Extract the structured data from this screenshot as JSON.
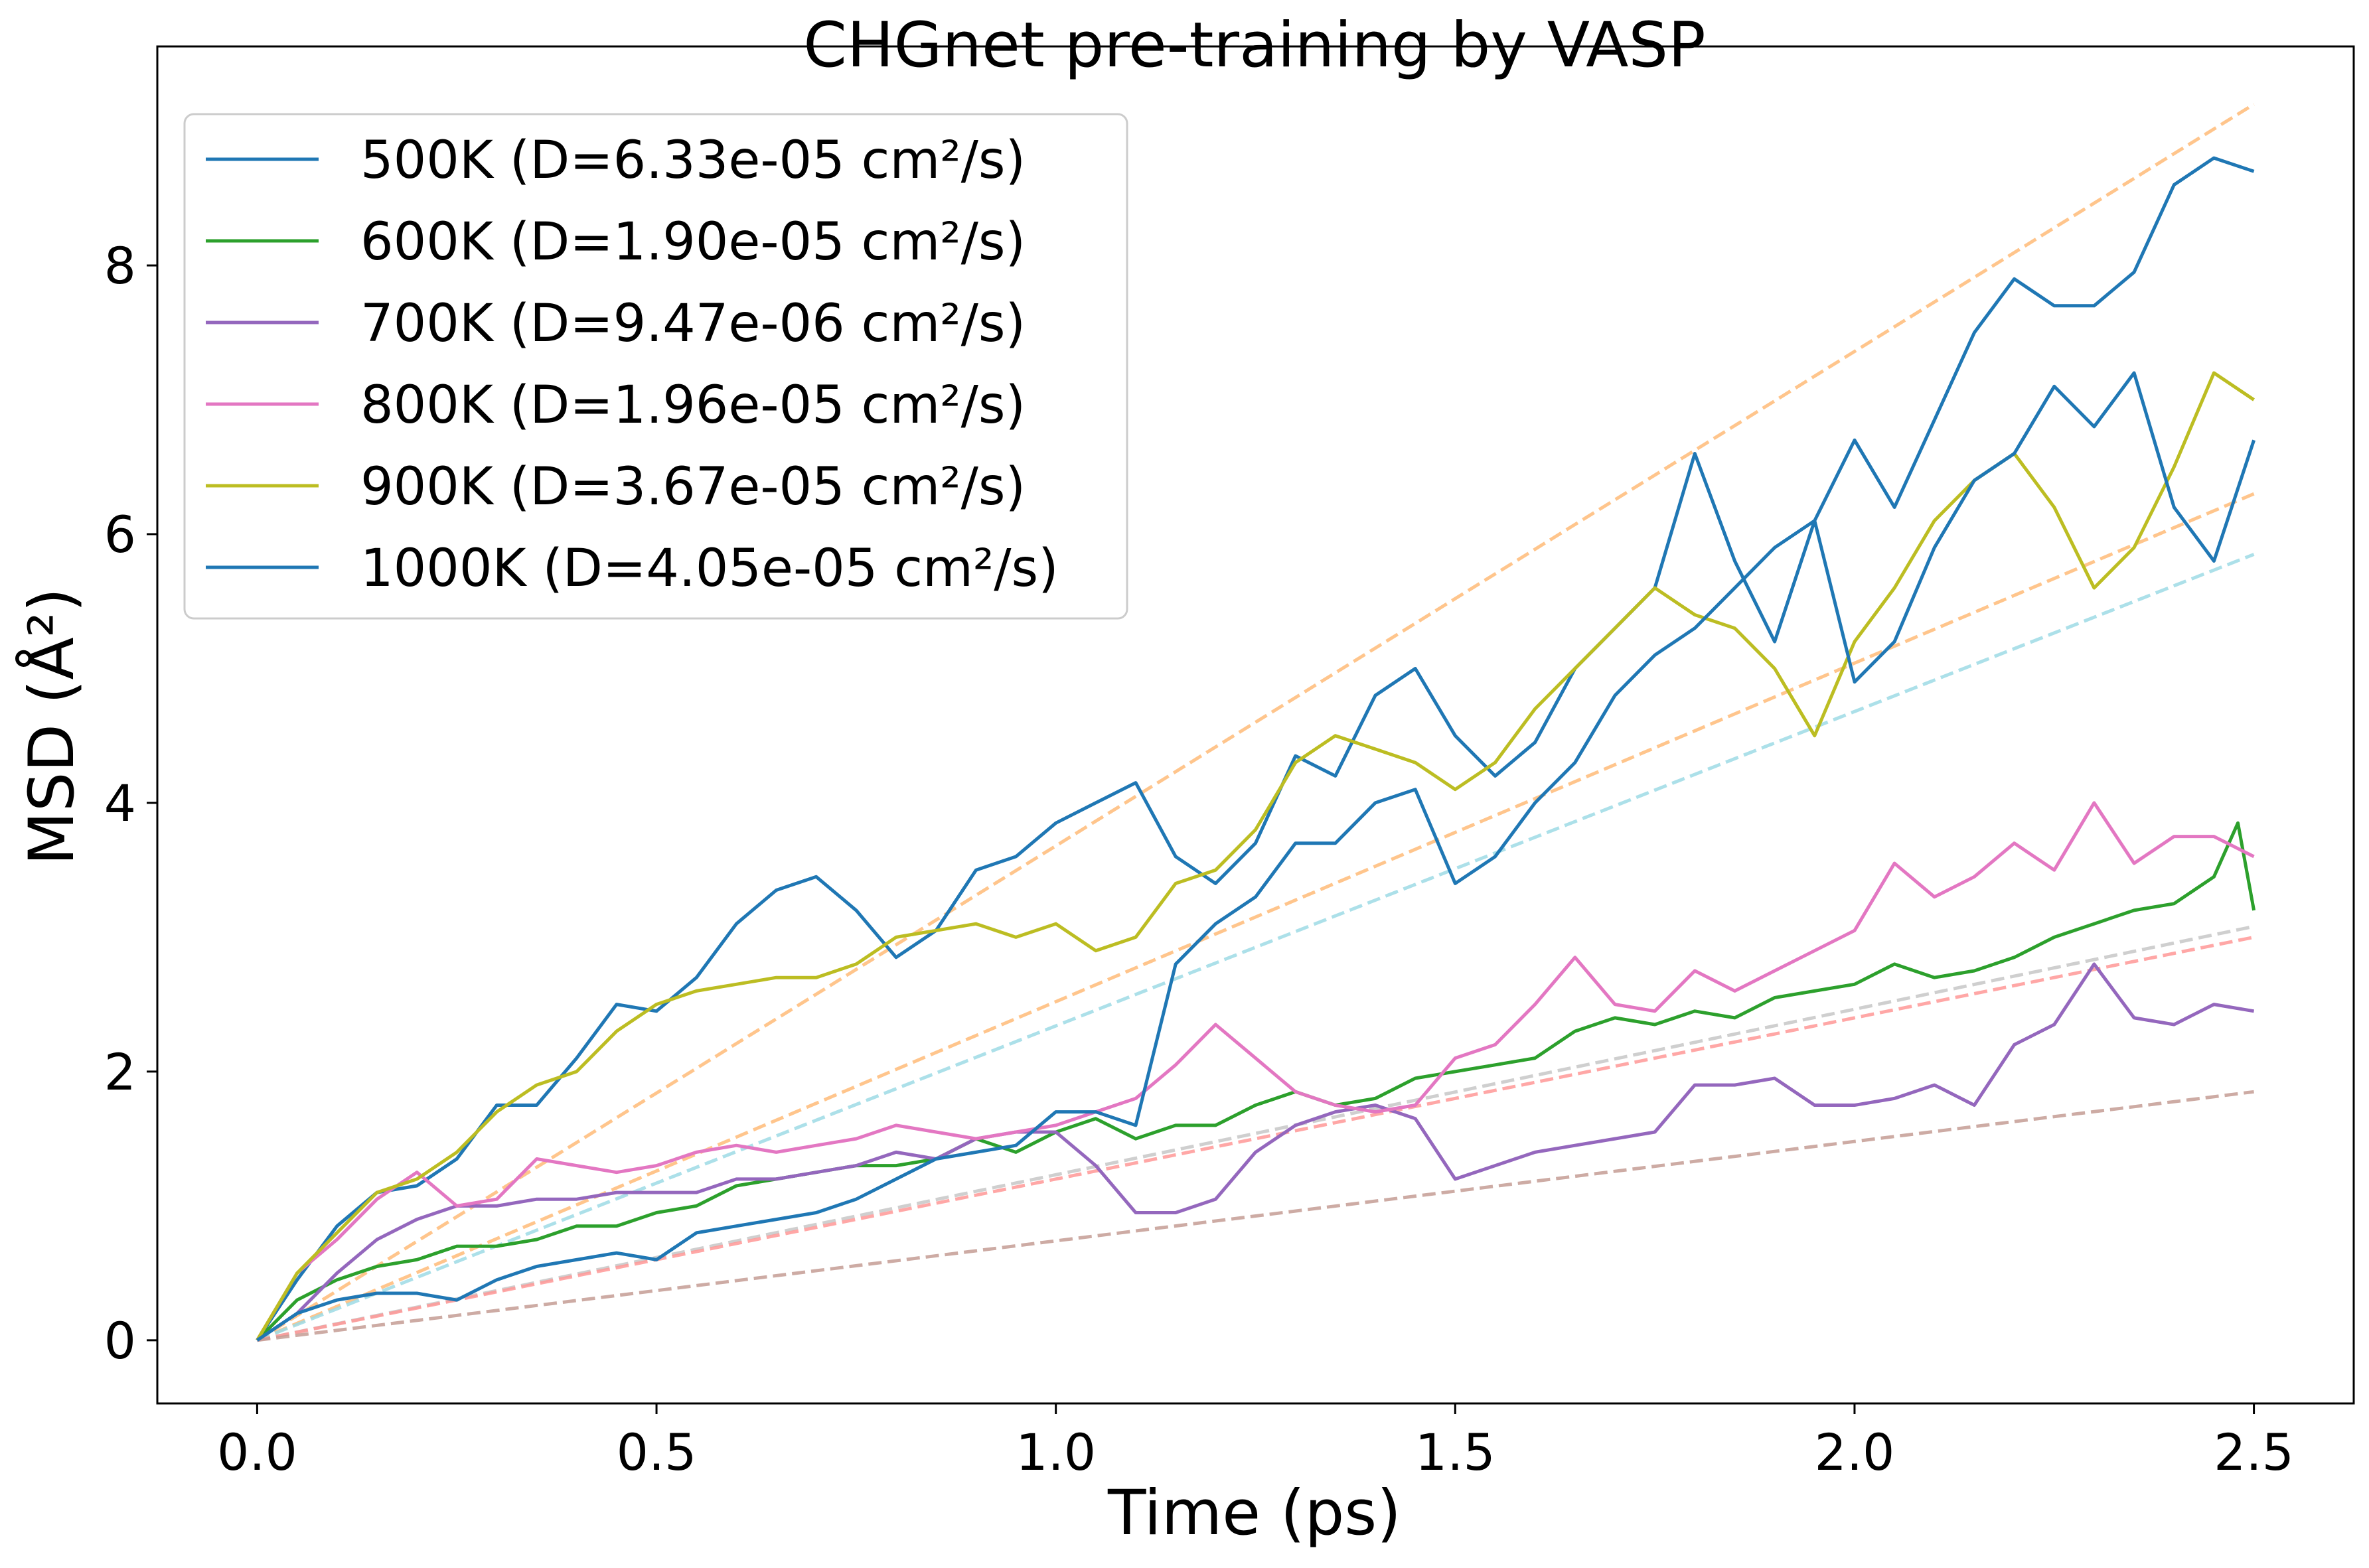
{
  "chart_data": {
    "type": "line",
    "title": "CHGnet pre-training by VASP",
    "xlabel": "Time (ps)",
    "ylabel": "MSD (Å²)",
    "xlim": [
      -0.125,
      2.625
    ],
    "ylim": [
      -0.47,
      9.63
    ],
    "xticks": [
      0.0,
      0.5,
      1.0,
      1.5,
      2.0,
      2.5
    ],
    "xtick_labels": [
      "0.0",
      "0.5",
      "1.0",
      "1.5",
      "2.0",
      "2.5"
    ],
    "yticks": [
      0,
      2,
      4,
      6,
      8
    ],
    "ytick_labels": [
      "0",
      "2",
      "4",
      "6",
      "8"
    ],
    "grid": false,
    "legend_position": "top-left",
    "series": [
      {
        "name": "500K (D=6.33e-05 cm²/s)",
        "color": "#1f77b4",
        "x": [
          0.0,
          0.05,
          0.1,
          0.15,
          0.2,
          0.25,
          0.3,
          0.35,
          0.4,
          0.45,
          0.5,
          0.55,
          0.6,
          0.65,
          0.7,
          0.75,
          0.8,
          0.85,
          0.9,
          0.95,
          1.0,
          1.05,
          1.1,
          1.15,
          1.2,
          1.25,
          1.3,
          1.35,
          1.4,
          1.45,
          1.5,
          1.55,
          1.6,
          1.65,
          1.7,
          1.75,
          1.8,
          1.85,
          1.9,
          1.95,
          2.0,
          2.05,
          2.1,
          2.15,
          2.2,
          2.25,
          2.3,
          2.35,
          2.4,
          2.45,
          2.5
        ],
        "y": [
          0.0,
          0.45,
          0.85,
          1.1,
          1.15,
          1.35,
          1.75,
          1.75,
          2.1,
          2.5,
          2.45,
          2.7,
          3.1,
          3.35,
          3.45,
          3.2,
          2.85,
          3.05,
          3.5,
          3.6,
          3.85,
          4.0,
          4.15,
          3.6,
          3.4,
          3.7,
          4.35,
          4.2,
          4.8,
          5.0,
          4.5,
          4.2,
          4.45,
          5.0,
          5.3,
          5.6,
          6.6,
          5.8,
          5.2,
          6.1,
          6.7,
          6.2,
          6.85,
          7.5,
          7.9,
          7.7,
          7.7,
          7.95,
          8.6,
          8.8,
          8.7
        ]
      },
      {
        "name": "600K (D=1.90e-05 cm²/s)",
        "color": "#2ca02c",
        "x": [
          0.0,
          0.05,
          0.1,
          0.15,
          0.2,
          0.25,
          0.3,
          0.35,
          0.4,
          0.45,
          0.5,
          0.55,
          0.6,
          0.65,
          0.7,
          0.75,
          0.8,
          0.85,
          0.9,
          0.95,
          1.0,
          1.05,
          1.1,
          1.15,
          1.2,
          1.25,
          1.3,
          1.35,
          1.4,
          1.45,
          1.5,
          1.55,
          1.6,
          1.65,
          1.7,
          1.75,
          1.8,
          1.85,
          1.9,
          1.95,
          2.0,
          2.05,
          2.1,
          2.15,
          2.2,
          2.25,
          2.3,
          2.35,
          2.4,
          2.45,
          2.48,
          2.5
        ],
        "y": [
          0.0,
          0.3,
          0.45,
          0.55,
          0.6,
          0.7,
          0.7,
          0.75,
          0.85,
          0.85,
          0.95,
          1.0,
          1.15,
          1.2,
          1.25,
          1.3,
          1.3,
          1.35,
          1.5,
          1.4,
          1.55,
          1.65,
          1.5,
          1.6,
          1.6,
          1.75,
          1.85,
          1.75,
          1.8,
          1.95,
          2.0,
          2.05,
          2.1,
          2.3,
          2.4,
          2.35,
          2.45,
          2.4,
          2.55,
          2.6,
          2.65,
          2.8,
          2.7,
          2.75,
          2.85,
          3.0,
          3.1,
          3.2,
          3.25,
          3.45,
          3.85,
          3.2
        ]
      },
      {
        "name": "700K (D=9.47e-06 cm²/s)",
        "color": "#9467bd",
        "x": [
          0.0,
          0.05,
          0.1,
          0.15,
          0.2,
          0.25,
          0.3,
          0.35,
          0.4,
          0.45,
          0.5,
          0.55,
          0.6,
          0.65,
          0.7,
          0.75,
          0.8,
          0.85,
          0.9,
          0.95,
          1.0,
          1.05,
          1.1,
          1.15,
          1.2,
          1.25,
          1.3,
          1.35,
          1.4,
          1.45,
          1.5,
          1.55,
          1.6,
          1.65,
          1.7,
          1.75,
          1.8,
          1.85,
          1.9,
          1.95,
          2.0,
          2.05,
          2.1,
          2.15,
          2.2,
          2.25,
          2.3,
          2.35,
          2.4,
          2.45,
          2.5
        ],
        "y": [
          0.0,
          0.2,
          0.5,
          0.75,
          0.9,
          1.0,
          1.0,
          1.05,
          1.05,
          1.1,
          1.1,
          1.1,
          1.2,
          1.2,
          1.25,
          1.3,
          1.4,
          1.35,
          1.5,
          1.55,
          1.55,
          1.3,
          0.95,
          0.95,
          1.05,
          1.4,
          1.6,
          1.7,
          1.75,
          1.65,
          1.2,
          1.3,
          1.4,
          1.45,
          1.5,
          1.55,
          1.9,
          1.9,
          1.95,
          1.75,
          1.75,
          1.8,
          1.9,
          1.75,
          2.2,
          2.35,
          2.8,
          2.4,
          2.35,
          2.5,
          2.45
        ]
      },
      {
        "name": "800K (D=1.96e-05 cm²/s)",
        "color": "#e377c2",
        "x": [
          0.0,
          0.05,
          0.1,
          0.15,
          0.2,
          0.25,
          0.3,
          0.35,
          0.4,
          0.45,
          0.5,
          0.55,
          0.6,
          0.65,
          0.7,
          0.75,
          0.8,
          0.85,
          0.9,
          0.95,
          1.0,
          1.05,
          1.1,
          1.15,
          1.2,
          1.25,
          1.3,
          1.35,
          1.4,
          1.45,
          1.5,
          1.55,
          1.6,
          1.65,
          1.7,
          1.75,
          1.8,
          1.85,
          1.9,
          1.95,
          2.0,
          2.05,
          2.1,
          2.15,
          2.2,
          2.25,
          2.3,
          2.35,
          2.4,
          2.45,
          2.5
        ],
        "y": [
          0.0,
          0.5,
          0.75,
          1.05,
          1.25,
          1.0,
          1.05,
          1.35,
          1.3,
          1.25,
          1.3,
          1.4,
          1.45,
          1.4,
          1.45,
          1.5,
          1.6,
          1.55,
          1.5,
          1.55,
          1.6,
          1.7,
          1.8,
          2.05,
          2.35,
          2.1,
          1.85,
          1.75,
          1.7,
          1.75,
          2.1,
          2.2,
          2.5,
          2.85,
          2.5,
          2.45,
          2.75,
          2.6,
          2.75,
          2.9,
          3.05,
          3.55,
          3.3,
          3.45,
          3.7,
          3.5,
          4.0,
          3.55,
          3.75,
          3.75,
          3.6
        ]
      },
      {
        "name": "900K (D=3.67e-05 cm²/s)",
        "color": "#bcbd22",
        "x": [
          0.0,
          0.05,
          0.1,
          0.15,
          0.2,
          0.25,
          0.3,
          0.35,
          0.4,
          0.45,
          0.5,
          0.55,
          0.6,
          0.65,
          0.7,
          0.75,
          0.8,
          0.85,
          0.9,
          0.95,
          1.0,
          1.05,
          1.1,
          1.15,
          1.2,
          1.25,
          1.3,
          1.35,
          1.4,
          1.45,
          1.5,
          1.55,
          1.6,
          1.65,
          1.7,
          1.75,
          1.8,
          1.85,
          1.9,
          1.95,
          2.0,
          2.05,
          2.1,
          2.15,
          2.2,
          2.25,
          2.3,
          2.35,
          2.4,
          2.45,
          2.5
        ],
        "y": [
          0.0,
          0.5,
          0.8,
          1.1,
          1.2,
          1.4,
          1.7,
          1.9,
          2.0,
          2.3,
          2.5,
          2.6,
          2.65,
          2.7,
          2.7,
          2.8,
          3.0,
          3.05,
          3.1,
          3.0,
          3.1,
          2.9,
          3.0,
          3.4,
          3.5,
          3.8,
          4.3,
          4.5,
          4.4,
          4.3,
          4.1,
          4.3,
          4.7,
          5.0,
          5.3,
          5.6,
          5.4,
          5.3,
          5.0,
          4.5,
          5.2,
          5.6,
          6.1,
          6.4,
          6.6,
          6.2,
          5.6,
          5.9,
          6.5,
          7.2,
          7.0
        ]
      },
      {
        "name": "1000K (D=4.05e-05 cm²/s)",
        "color": "#1f77b4",
        "x": [
          0.0,
          0.05,
          0.1,
          0.15,
          0.2,
          0.25,
          0.3,
          0.35,
          0.4,
          0.45,
          0.5,
          0.55,
          0.6,
          0.65,
          0.7,
          0.75,
          0.8,
          0.85,
          0.9,
          0.95,
          1.0,
          1.05,
          1.1,
          1.15,
          1.2,
          1.25,
          1.3,
          1.35,
          1.4,
          1.45,
          1.5,
          1.55,
          1.6,
          1.65,
          1.7,
          1.75,
          1.8,
          1.85,
          1.9,
          1.95,
          2.0,
          2.05,
          2.1,
          2.15,
          2.2,
          2.25,
          2.3,
          2.35,
          2.4,
          2.45,
          2.5
        ],
        "y": [
          0.0,
          0.2,
          0.3,
          0.35,
          0.35,
          0.3,
          0.45,
          0.55,
          0.6,
          0.65,
          0.6,
          0.8,
          0.85,
          0.9,
          0.95,
          1.05,
          1.2,
          1.35,
          1.4,
          1.45,
          1.7,
          1.7,
          1.6,
          2.8,
          3.1,
          3.3,
          3.7,
          3.7,
          4.0,
          4.1,
          3.4,
          3.6,
          4.0,
          4.3,
          4.8,
          5.1,
          5.3,
          5.6,
          5.9,
          6.1,
          4.9,
          5.2,
          5.9,
          6.4,
          6.6,
          7.1,
          6.8,
          7.2,
          6.2,
          5.8,
          6.7
        ]
      }
    ],
    "fit_lines": [
      {
        "color": "#ffbb78",
        "x": [
          0.0,
          2.5
        ],
        "y": [
          0.0,
          9.2
        ]
      },
      {
        "color": "#ffbb78",
        "x": [
          0.0,
          2.5
        ],
        "y": [
          0.0,
          6.3
        ]
      },
      {
        "color": "#9edae5",
        "x": [
          0.0,
          2.5
        ],
        "y": [
          0.0,
          5.85
        ]
      },
      {
        "color": "#c7c7c7",
        "x": [
          0.0,
          2.5
        ],
        "y": [
          0.0,
          3.08
        ]
      },
      {
        "color": "#ff9896",
        "x": [
          0.0,
          2.5
        ],
        "y": [
          0.0,
          3.0
        ]
      },
      {
        "color": "#c49c94",
        "x": [
          0.0,
          2.5
        ],
        "y": [
          0.0,
          1.85
        ]
      }
    ]
  }
}
